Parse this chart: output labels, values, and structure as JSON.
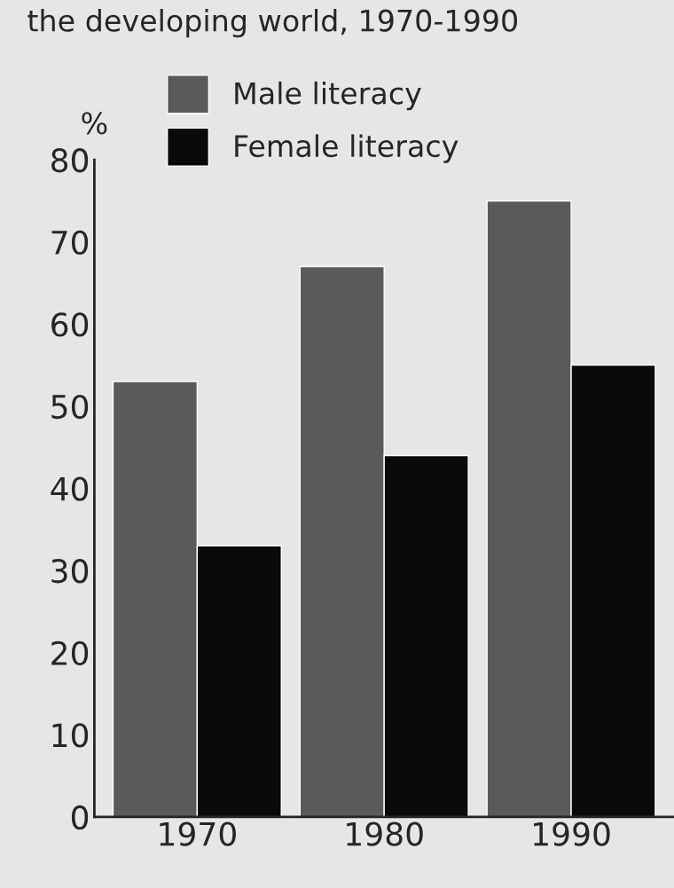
{
  "chart_data": {
    "type": "bar",
    "title": "the developing world, 1970-1990",
    "ylabel": "%",
    "categories": [
      "1970",
      "1980",
      "1990"
    ],
    "series": [
      {
        "name": "Male literacy",
        "color": "#5a5a5a",
        "values": [
          53,
          67,
          75
        ]
      },
      {
        "name": "Female literacy",
        "color": "#0a0a0a",
        "values": [
          33,
          44,
          55
        ]
      }
    ],
    "ylim": [
      0,
      80
    ],
    "yticks": [
      0,
      10,
      20,
      30,
      40,
      50,
      60,
      70,
      80
    ],
    "grid": false,
    "legend": "top left"
  }
}
